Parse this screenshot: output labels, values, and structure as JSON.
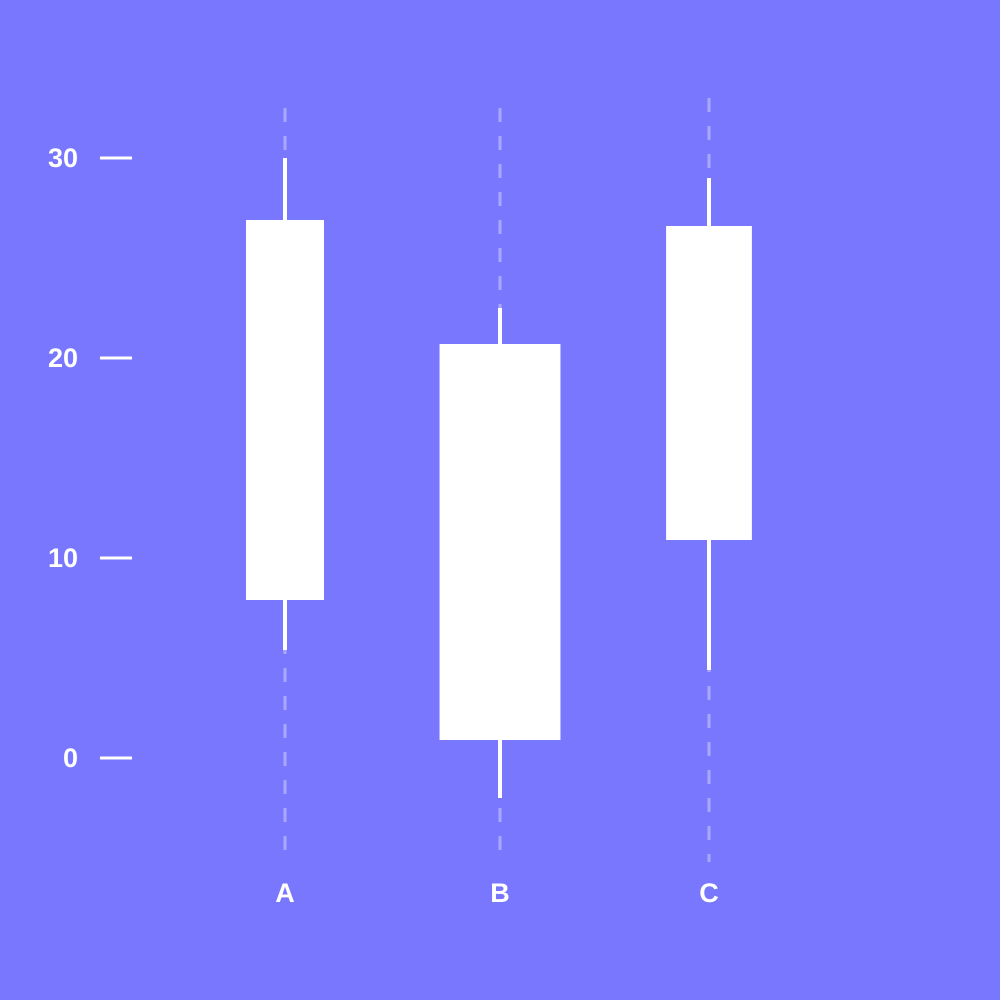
{
  "colors": {
    "background": "#7877FD",
    "candle": "#FFFFFF",
    "guide": "#A9A8FE"
  },
  "chart_data": {
    "type": "candlestick",
    "title": "",
    "xlabel": "",
    "ylabel": "",
    "ylim": [
      0,
      30
    ],
    "y_ticks": [
      {
        "value": 0,
        "label": "0"
      },
      {
        "value": 10,
        "label": "10"
      },
      {
        "value": 20,
        "label": "20"
      },
      {
        "value": 30,
        "label": "30"
      }
    ],
    "categories": [
      "A",
      "B",
      "C"
    ],
    "candles": [
      {
        "category": "A",
        "low": 5.4,
        "high": 30.0,
        "body_bottom": 7.9,
        "body_top": 26.9,
        "body_width": 1.0
      },
      {
        "category": "B",
        "low": -2.0,
        "high": 22.5,
        "body_bottom": 0.9,
        "body_top": 20.7,
        "body_width": 1.55
      },
      {
        "category": "C",
        "low": 4.4,
        "high": 29.0,
        "body_bottom": 10.9,
        "body_top": 26.6,
        "body_width": 1.1
      }
    ],
    "grid": false,
    "legend": "none"
  }
}
